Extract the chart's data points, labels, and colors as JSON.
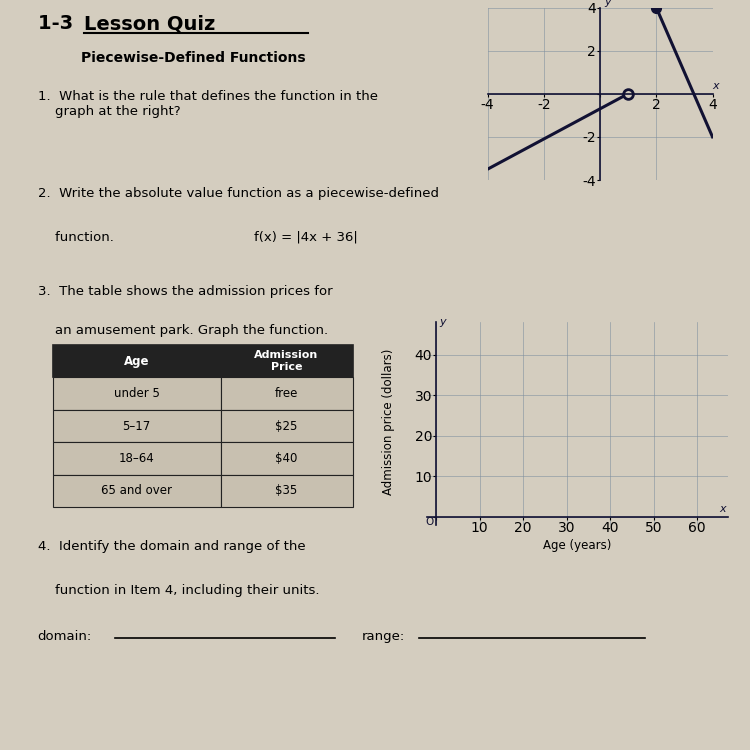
{
  "title_prefix": "1-3 ",
  "title_main": "Lesson Quiz",
  "subtitle": "Piecewise-Defined Functions",
  "background_color": "#d4cdbf",
  "q1_text": "1.  What is the rule that defines the function in the\n    graph at the right?",
  "q2_line1": "2.  Write the absolute value function as a piecewise-defined",
  "q2_line2": "    function.",
  "q2_func": "f(x) = |4x + 36|",
  "q3_line1": "3.  The table shows the admission prices for",
  "q3_line2": "    an amusement park. Graph the function.",
  "q4_line1": "4.  Identify the domain and range of the",
  "q4_line2": "    function in Item 4, including their units.",
  "domain_label": "domain:",
  "range_label": "range:",
  "table_rows": [
    [
      "under 5",
      "free"
    ],
    [
      "5–17",
      "$25"
    ],
    [
      "18–64",
      "$40"
    ],
    [
      "65 and over",
      "$35"
    ]
  ],
  "small_graph_xlim": [
    -4,
    4
  ],
  "small_graph_ylim": [
    -4,
    4
  ],
  "small_graph_xticks": [
    -4,
    -2,
    0,
    2,
    4
  ],
  "small_graph_yticks": [
    -4,
    -2,
    0,
    2,
    4
  ],
  "large_graph_xticks": [
    0,
    10,
    20,
    30,
    40,
    50,
    60
  ],
  "large_graph_yticks": [
    0,
    10,
    20,
    30,
    40
  ],
  "large_xlabel": "Age (years)",
  "large_ylabel": "Admission price (dollars)",
  "grid_color": "#8090a0",
  "line_color": "#111133",
  "table_header_bg": "#222222",
  "table_header_fg": "#ffffff",
  "table_row_bg": "#c8c0b0",
  "table_border": "#222222"
}
